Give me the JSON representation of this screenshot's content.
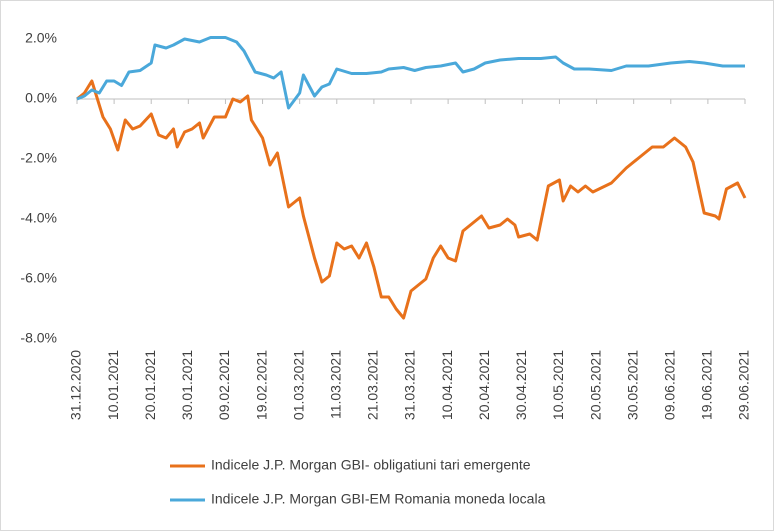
{
  "chart_data": {
    "type": "line",
    "xlim": [
      "31.12.2020",
      "29.06.2021"
    ],
    "xticks": [
      "31.12.2020",
      "10.01.2021",
      "20.01.2021",
      "30.01.2021",
      "09.02.2021",
      "19.02.2021",
      "01.03.2021",
      "11.03.2021",
      "21.03.2021",
      "31.03.2021",
      "10.04.2021",
      "20.04.2021",
      "30.04.2021",
      "10.05.2021",
      "20.05.2021",
      "30.05.2021",
      "09.06.2021",
      "19.06.2021",
      "29.06.2021"
    ],
    "ylim": [
      -8,
      2
    ],
    "yticks": [
      {
        "value": -8,
        "label": "-8.0%"
      },
      {
        "value": -6,
        "label": "-6.0%"
      },
      {
        "value": -4,
        "label": "-4.0%"
      },
      {
        "value": -2,
        "label": "-2.0%"
      },
      {
        "value": 0,
        "label": "0.0%"
      },
      {
        "value": 2,
        "label": "2.0%"
      }
    ],
    "grid": false,
    "legend": "bottom",
    "series": [
      {
        "name": "Indicele J.P. Morgan GBI- obligatiuni tari emergente",
        "color": "#e8711b",
        "x": [
          "31.12.2020",
          "02.01.2021",
          "04.01.2021",
          "05.01.2021",
          "07.01.2021",
          "09.01.2021",
          "11.01.2021",
          "13.01.2021",
          "15.01.2021",
          "17.01.2021",
          "20.01.2021",
          "22.01.2021",
          "24.01.2021",
          "26.01.2021",
          "27.01.2021",
          "29.01.2021",
          "31.01.2021",
          "02.02.2021",
          "03.02.2021",
          "06.02.2021",
          "09.02.2021",
          "11.02.2021",
          "13.02.2021",
          "15.02.2021",
          "16.02.2021",
          "19.02.2021",
          "21.02.2021",
          "23.02.2021",
          "26.02.2021",
          "01.03.2021",
          "02.03.2021",
          "05.03.2021",
          "07.03.2021",
          "09.03.2021",
          "11.03.2021",
          "13.03.2021",
          "15.03.2021",
          "17.03.2021",
          "19.03.2021",
          "21.03.2021",
          "23.03.2021",
          "25.03.2021",
          "27.03.2021",
          "29.03.2021",
          "31.03.2021",
          "04.04.2021",
          "06.04.2021",
          "08.04.2021",
          "10.04.2021",
          "12.04.2021",
          "14.04.2021",
          "17.04.2021",
          "19.04.2021",
          "21.04.2021",
          "24.04.2021",
          "26.04.2021",
          "28.04.2021",
          "29.04.2021",
          "02.05.2021",
          "04.05.2021",
          "06.05.2021",
          "07.05.2021",
          "10.05.2021",
          "11.05.2021",
          "13.05.2021",
          "15.05.2021",
          "17.05.2021",
          "19.05.2021",
          "24.05.2021",
          "28.05.2021",
          "01.06.2021",
          "04.06.2021",
          "07.06.2021",
          "10.06.2021",
          "13.06.2021",
          "15.06.2021",
          "18.06.2021",
          "21.06.2021",
          "22.06.2021",
          "24.06.2021",
          "27.06.2021",
          "29.06.2021"
        ],
        "values": [
          0,
          0.2,
          0.6,
          0.2,
          -0.6,
          -1.0,
          -1.7,
          -0.7,
          -1.0,
          -0.9,
          -0.5,
          -1.2,
          -1.3,
          -1.0,
          -1.6,
          -1.1,
          -1.0,
          -0.8,
          -1.3,
          -0.6,
          -0.6,
          0.0,
          -0.1,
          0.1,
          -0.7,
          -1.3,
          -2.2,
          -1.8,
          -3.6,
          -3.3,
          -3.9,
          -5.3,
          -6.1,
          -5.9,
          -4.8,
          -5.0,
          -4.9,
          -5.3,
          -4.8,
          -5.6,
          -6.6,
          -6.6,
          -7.0,
          -7.3,
          -6.4,
          -6.0,
          -5.3,
          -4.9,
          -5.3,
          -5.4,
          -4.4,
          -4.1,
          -3.9,
          -4.3,
          -4.2,
          -4.0,
          -4.2,
          -4.6,
          -4.5,
          -4.7,
          -3.5,
          -2.9,
          -2.7,
          -3.4,
          -2.9,
          -3.1,
          -2.9,
          -3.1,
          -2.8,
          -2.3,
          -1.9,
          -1.6,
          -1.6,
          -1.3,
          -1.6,
          -2.1,
          -3.8,
          -3.9,
          -4.0,
          -3.0,
          -2.8,
          -3.3
        ]
      },
      {
        "name": "Indicele J.P. Morgan GBI-EM Romania moneda locala",
        "color": "#4aa8da",
        "x": [
          "31.12.2020",
          "02.01.2021",
          "04.01.2021",
          "06.01.2021",
          "08.01.2021",
          "10.01.2021",
          "12.01.2021",
          "14.01.2021",
          "17.01.2021",
          "20.01.2021",
          "21.01.2021",
          "24.01.2021",
          "26.01.2021",
          "29.01.2021",
          "02.02.2021",
          "05.02.2021",
          "09.02.2021",
          "12.02.2021",
          "14.02.2021",
          "17.02.2021",
          "20.02.2021",
          "22.02.2021",
          "24.02.2021",
          "26.02.2021",
          "01.03.2021",
          "02.03.2021",
          "05.03.2021",
          "07.03.2021",
          "09.03.2021",
          "11.03.2021",
          "15.03.2021",
          "19.03.2021",
          "23.03.2021",
          "25.03.2021",
          "29.03.2021",
          "01.04.2021",
          "04.04.2021",
          "08.04.2021",
          "12.04.2021",
          "14.04.2021",
          "17.04.2021",
          "20.04.2021",
          "24.04.2021",
          "29.04.2021",
          "05.05.2021",
          "09.05.2021",
          "11.05.2021",
          "14.05.2021",
          "18.05.2021",
          "24.05.2021",
          "28.05.2021",
          "03.06.2021",
          "09.06.2021",
          "14.06.2021",
          "18.06.2021",
          "23.06.2021",
          "29.06.2021"
        ],
        "values": [
          0,
          0.1,
          0.3,
          0.2,
          0.6,
          0.6,
          0.45,
          0.9,
          0.95,
          1.2,
          1.8,
          1.7,
          1.8,
          2.0,
          1.9,
          2.05,
          2.05,
          1.9,
          1.6,
          0.9,
          0.8,
          0.7,
          0.9,
          -0.3,
          0.2,
          0.8,
          0.1,
          0.4,
          0.5,
          1.0,
          0.85,
          0.85,
          0.9,
          1.0,
          1.05,
          0.95,
          1.05,
          1.1,
          1.2,
          0.9,
          1.0,
          1.2,
          1.3,
          1.35,
          1.35,
          1.4,
          1.2,
          1.0,
          1.0,
          0.95,
          1.1,
          1.1,
          1.2,
          1.25,
          1.2,
          1.1,
          1.1
        ]
      }
    ]
  }
}
